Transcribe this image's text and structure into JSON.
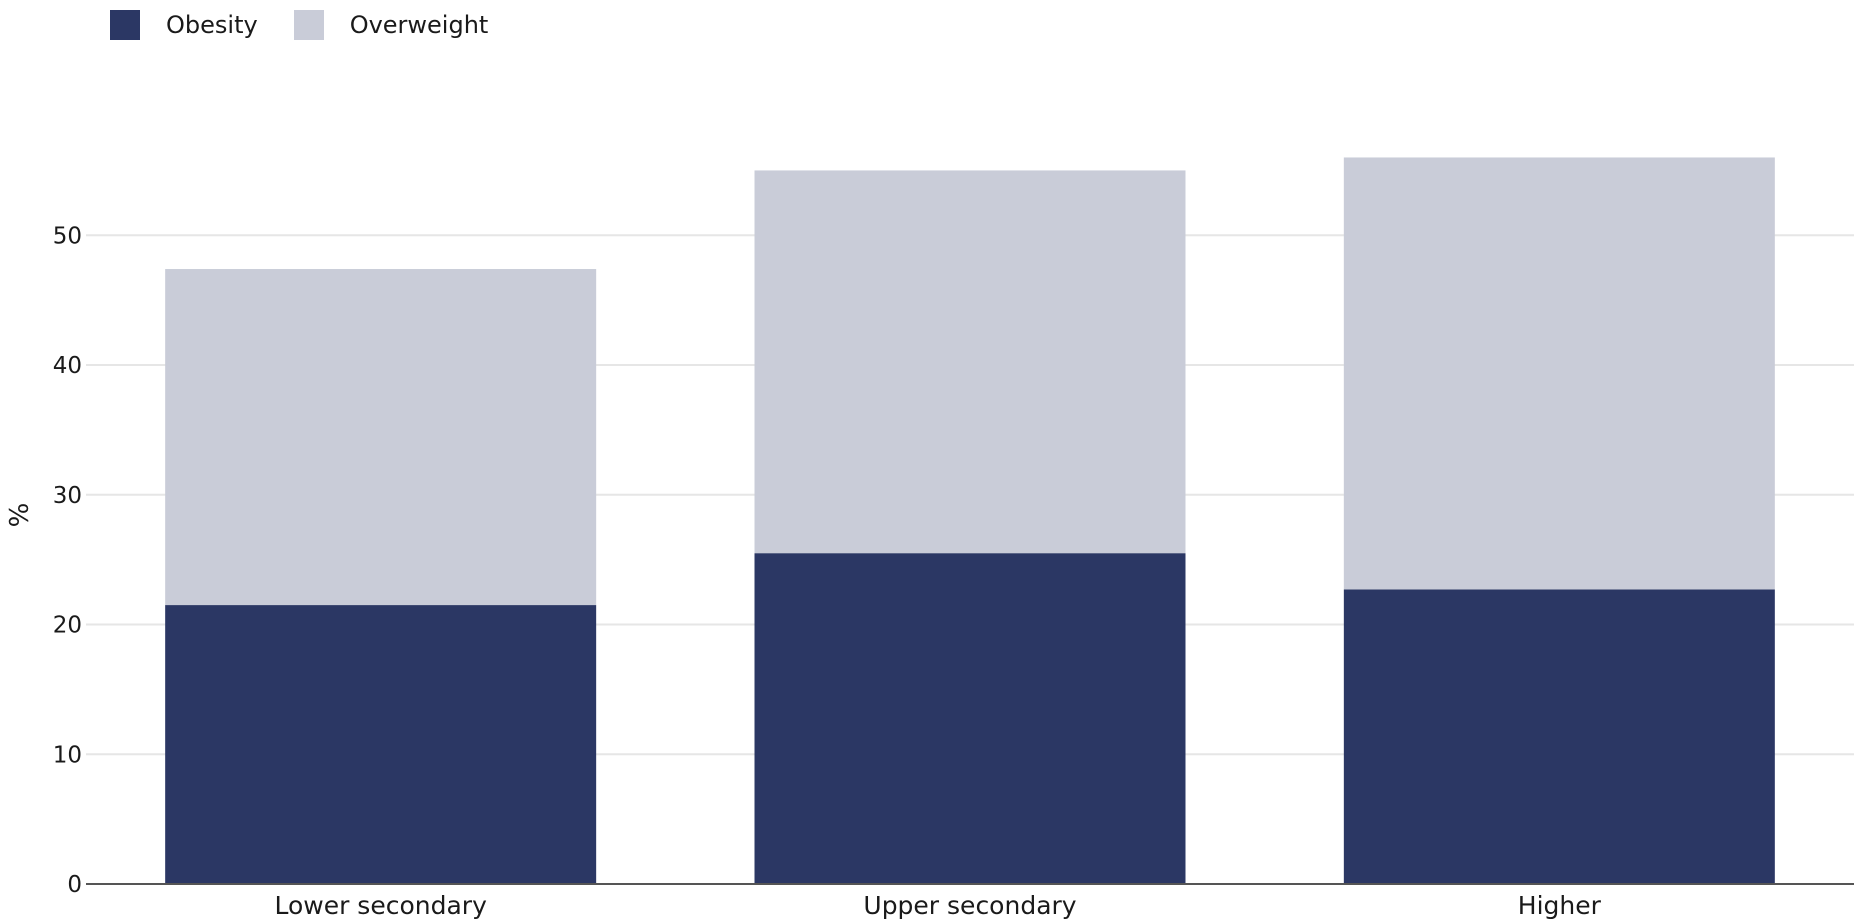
{
  "chart_data": {
    "type": "bar",
    "stacked": true,
    "categories": [
      "Lower secondary",
      "Upper secondary",
      "Higher"
    ],
    "series": [
      {
        "name": "Obesity",
        "values": [
          21.5,
          25.5,
          22.7
        ],
        "color": "#2b3764"
      },
      {
        "name": "Overweight",
        "values": [
          25.9,
          29.5,
          33.3
        ],
        "color": "#c9ccd8"
      }
    ],
    "title": "",
    "xlabel": "",
    "ylabel": "%",
    "ylim": [
      0,
      57.5
    ],
    "yticks": [
      0,
      10,
      20,
      30,
      40,
      50
    ],
    "grid": true,
    "legend_position": "top-left"
  }
}
